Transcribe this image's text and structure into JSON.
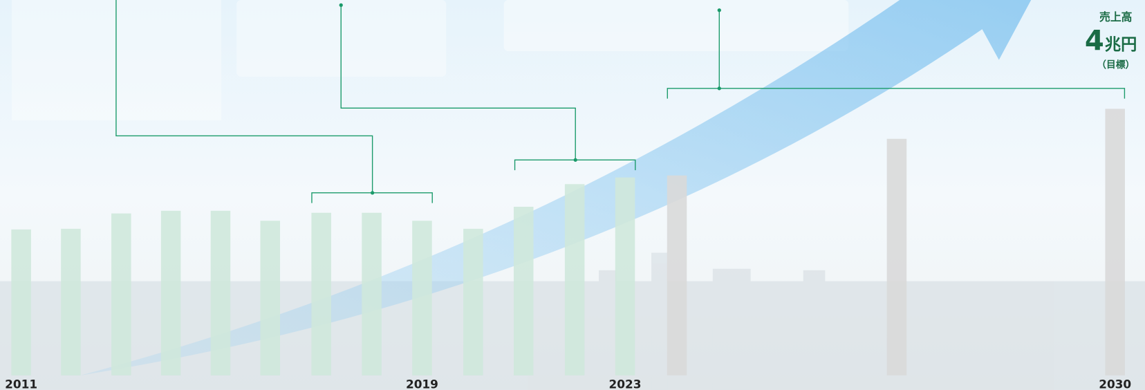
{
  "chart_data": {
    "type": "bar",
    "categories": [
      "2011",
      null,
      null,
      null,
      null,
      null,
      null,
      null,
      "2019",
      null,
      null,
      null,
      "2023",
      null,
      null,
      "2030"
    ],
    "series": [
      {
        "color": "#cfe8db",
        "values": [
          2.19,
          2.2,
          2.43,
          2.47,
          2.47,
          2.32,
          2.44,
          2.44,
          2.32,
          2.2,
          2.53,
          2.87,
          2.97,
          null,
          null,
          null
        ]
      },
      {
        "color": "#d9d9d9",
        "values": [
          null,
          null,
          null,
          null,
          null,
          null,
          null,
          null,
          null,
          null,
          null,
          null,
          null,
          3.0,
          3.55,
          4.0
        ]
      }
    ],
    "ylim": [
      0,
      4
    ],
    "annotation": {
      "label": "売上高",
      "value": "4",
      "unit": "兆円",
      "note": "（目標）"
    }
  }
}
